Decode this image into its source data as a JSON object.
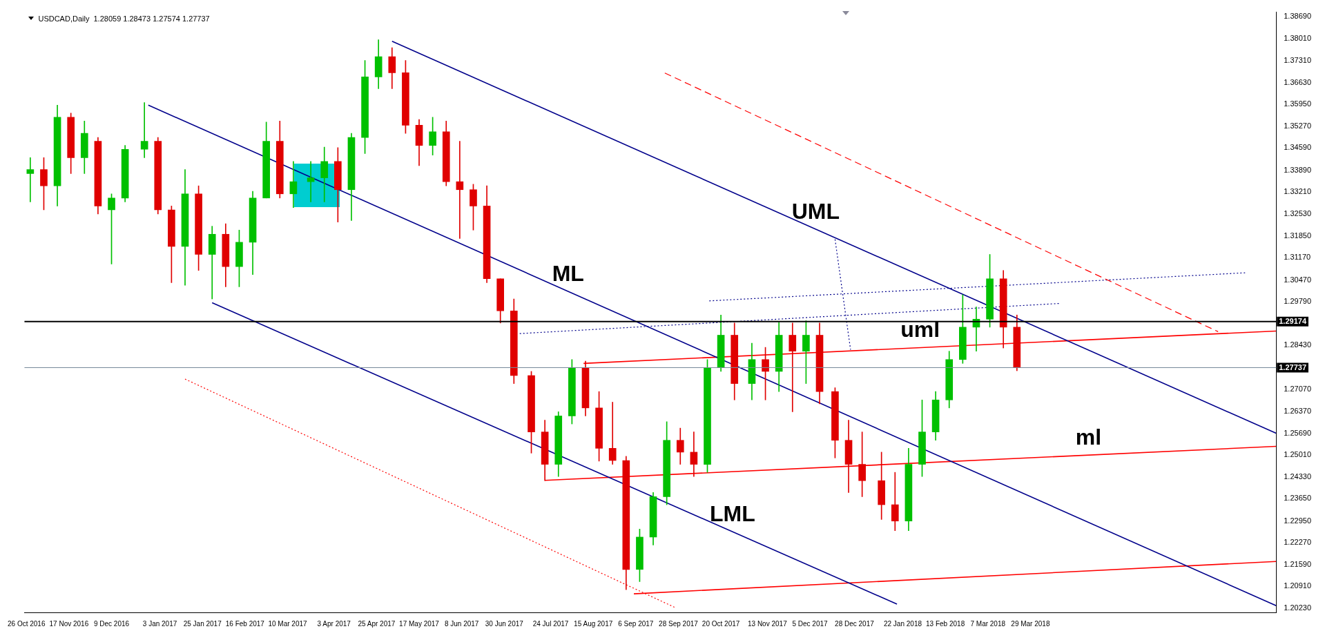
{
  "chart_data": {
    "type": "candlestick",
    "title": "USDCAD,Daily  1.28059 1.28473 1.27574 1.27737",
    "x": [
      "2016-10-28",
      "2016-11-04",
      "2016-11-11",
      "2016-11-18",
      "2016-11-25",
      "2016-12-02",
      "2016-12-09",
      "2016-12-16",
      "2016-12-26",
      "2017-01-02",
      "2017-01-09",
      "2017-01-16",
      "2017-01-23",
      "2017-01-30",
      "2017-02-06",
      "2017-02-13",
      "2017-02-20",
      "2017-02-27",
      "2017-03-06",
      "2017-03-13",
      "2017-03-22",
      "2017-03-29",
      "2017-04-05",
      "2017-04-12",
      "2017-04-19",
      "2017-04-26",
      "2017-05-03",
      "2017-05-10",
      "2017-05-17",
      "2017-05-24",
      "2017-05-31",
      "2017-06-07",
      "2017-06-14",
      "2017-06-21",
      "2017-06-28",
      "2017-07-05",
      "2017-07-14",
      "2017-07-21",
      "2017-07-28",
      "2017-08-04",
      "2017-08-11",
      "2017-08-18",
      "2017-08-25",
      "2017-09-01",
      "2017-09-08",
      "2017-09-15",
      "2017-09-22",
      "2017-09-29",
      "2017-10-06",
      "2017-10-13",
      "2017-10-20",
      "2017-10-27",
      "2017-11-05",
      "2017-11-12",
      "2017-11-19",
      "2017-11-26",
      "2017-12-03",
      "2017-12-10",
      "2017-12-18",
      "2017-12-25",
      "2018-01-01",
      "2018-01-11",
      "2018-01-18",
      "2018-01-25",
      "2018-02-01",
      "2018-02-08",
      "2018-02-15",
      "2018-02-22",
      "2018-03-01",
      "2018-03-08",
      "2018-03-15",
      "2018-03-22"
    ],
    "ohlc": [
      [
        1.3379,
        1.3429,
        1.3291,
        1.3392
      ],
      [
        1.3392,
        1.3429,
        1.3266,
        1.3341
      ],
      [
        1.3341,
        1.3593,
        1.3278,
        1.3555
      ],
      [
        1.3555,
        1.3568,
        1.3379,
        1.3429
      ],
      [
        1.3429,
        1.3543,
        1.3379,
        1.3505
      ],
      [
        1.348,
        1.3492,
        1.3253,
        1.3278
      ],
      [
        1.3266,
        1.3316,
        1.3097,
        1.3303
      ],
      [
        1.3303,
        1.3467,
        1.3291,
        1.3455
      ],
      [
        1.3455,
        1.3601,
        1.3429,
        1.348
      ],
      [
        1.348,
        1.3492,
        1.3253,
        1.3266
      ],
      [
        1.3266,
        1.3278,
        1.3039,
        1.3152
      ],
      [
        1.3152,
        1.3392,
        1.3031,
        1.3316
      ],
      [
        1.3316,
        1.3341,
        1.3077,
        1.3127
      ],
      [
        1.3127,
        1.3215,
        1.2988,
        1.319
      ],
      [
        1.319,
        1.3223,
        1.3026,
        1.3089
      ],
      [
        1.3089,
        1.3203,
        1.3026,
        1.3165
      ],
      [
        1.3165,
        1.3324,
        1.3064,
        1.3303
      ],
      [
        1.3303,
        1.354,
        1.3303,
        1.348
      ],
      [
        1.348,
        1.3543,
        1.3303,
        1.3316
      ],
      [
        1.3316,
        1.3417,
        1.3273,
        1.3354
      ],
      [
        1.3354,
        1.3417,
        1.3291,
        1.3366
      ],
      [
        1.3366,
        1.3462,
        1.3291,
        1.3417
      ],
      [
        1.3417,
        1.346,
        1.3228,
        1.3329
      ],
      [
        1.3329,
        1.3505,
        1.3233,
        1.3492
      ],
      [
        1.3492,
        1.3732,
        1.3442,
        1.3681
      ],
      [
        1.3681,
        1.3797,
        1.3644,
        1.3744
      ],
      [
        1.3744,
        1.3772,
        1.3644,
        1.3694
      ],
      [
        1.3694,
        1.3732,
        1.3505,
        1.353
      ],
      [
        1.353,
        1.3548,
        1.3404,
        1.3467
      ],
      [
        1.3467,
        1.3555,
        1.3437,
        1.351
      ],
      [
        1.351,
        1.3543,
        1.3341,
        1.3354
      ],
      [
        1.3354,
        1.348,
        1.3177,
        1.3329
      ],
      [
        1.3329,
        1.3346,
        1.3203,
        1.3278
      ],
      [
        1.3278,
        1.3341,
        1.3039,
        1.3051
      ],
      [
        1.3051,
        1.3051,
        1.2913,
        1.2951
      ],
      [
        1.2951,
        1.2988,
        1.2724,
        1.2749
      ],
      [
        1.2749,
        1.2762,
        1.2507,
        1.2573
      ],
      [
        1.2573,
        1.261,
        1.2421,
        1.2472
      ],
      [
        1.2472,
        1.2636,
        1.2434,
        1.2623
      ],
      [
        1.2623,
        1.2799,
        1.2598,
        1.2774
      ],
      [
        1.2774,
        1.2794,
        1.2623,
        1.2648
      ],
      [
        1.2648,
        1.2699,
        1.2482,
        1.2522
      ],
      [
        1.2522,
        1.2666,
        1.2472,
        1.2484
      ],
      [
        1.2484,
        1.2497,
        1.2081,
        1.2144
      ],
      [
        1.2144,
        1.227,
        1.2106,
        1.2245
      ],
      [
        1.2245,
        1.2384,
        1.222,
        1.2371
      ],
      [
        1.2371,
        1.2605,
        1.2346,
        1.2547
      ],
      [
        1.2547,
        1.2585,
        1.2472,
        1.251
      ],
      [
        1.251,
        1.2573,
        1.2434,
        1.2472
      ],
      [
        1.2472,
        1.2799,
        1.2447,
        1.2774
      ],
      [
        1.2774,
        1.2938,
        1.2762,
        1.2875
      ],
      [
        1.2875,
        1.2913,
        1.2673,
        1.2724
      ],
      [
        1.2724,
        1.285,
        1.2673,
        1.2799
      ],
      [
        1.2799,
        1.2837,
        1.2673,
        1.2762
      ],
      [
        1.2762,
        1.2915,
        1.2699,
        1.2875
      ],
      [
        1.2875,
        1.2913,
        1.2636,
        1.2825
      ],
      [
        1.2825,
        1.292,
        1.2724,
        1.2875
      ],
      [
        1.2875,
        1.2913,
        1.2661,
        1.2699
      ],
      [
        1.2699,
        1.2711,
        1.2492,
        1.2547
      ],
      [
        1.2547,
        1.261,
        1.2384,
        1.2472
      ],
      [
        1.2472,
        1.2573,
        1.2371,
        1.2421
      ],
      [
        1.2421,
        1.251,
        1.23,
        1.2346
      ],
      [
        1.2346,
        1.2447,
        1.2265,
        1.2295
      ],
      [
        1.2295,
        1.2522,
        1.2265,
        1.2472
      ],
      [
        1.2472,
        1.2673,
        1.2434,
        1.2573
      ],
      [
        1.2573,
        1.2699,
        1.2547,
        1.2673
      ],
      [
        1.2673,
        1.2825,
        1.2648,
        1.2799
      ],
      [
        1.2799,
        1.3001,
        1.2787,
        1.29
      ],
      [
        1.29,
        1.2963,
        1.2825,
        1.2925
      ],
      [
        1.2925,
        1.3127,
        1.29,
        1.3051
      ],
      [
        1.3051,
        1.3077,
        1.2835,
        1.29
      ],
      [
        1.29,
        1.2938,
        1.2764,
        1.2774
      ]
    ],
    "colors": [
      "#00c000",
      "#e00000",
      "#00c000",
      "#e00000",
      "#00c000",
      "#e00000",
      "#00c000",
      "#00c000",
      "#00c000",
      "#e00000",
      "#e00000",
      "#00c000",
      "#e00000",
      "#00c000",
      "#e00000",
      "#00c000",
      "#00c000",
      "#00c000",
      "#e00000",
      "#00c000",
      "#00c000",
      "#00c000",
      "#e00000",
      "#00c000",
      "#00c000",
      "#00c000",
      "#e00000",
      "#e00000",
      "#e00000",
      "#00c000",
      "#e00000",
      "#e00000",
      "#e00000",
      "#e00000",
      "#e00000",
      "#e00000",
      "#e00000",
      "#e00000",
      "#00c000",
      "#00c000",
      "#e00000",
      "#e00000",
      "#e00000",
      "#e00000",
      "#00c000",
      "#00c000",
      "#00c000",
      "#e00000",
      "#e00000",
      "#00c000",
      "#00c000",
      "#e00000",
      "#00c000",
      "#e00000",
      "#00c000",
      "#e00000",
      "#00c000",
      "#e00000",
      "#e00000",
      "#e00000",
      "#e00000",
      "#e00000",
      "#e00000",
      "#00c000",
      "#00c000",
      "#00c000",
      "#00c000",
      "#00c000",
      "#00c000",
      "#00c000",
      "#e00000",
      "#e00000"
    ],
    "series": [
      {
        "type": "line",
        "color": "#00008b",
        "line_style": "solid",
        "x": [
          "2017-05-03",
          "2018-08-03"
        ],
        "values": [
          1.3792,
          1.2569
        ]
      },
      {
        "type": "line",
        "color": "#00008b",
        "line_style": "solid",
        "x": [
          "2016-12-28",
          "2018-08-03"
        ],
        "values": [
          1.3593,
          1.2031
        ]
      },
      {
        "type": "line",
        "color": "#00008b",
        "line_style": "solid",
        "x": [
          "2017-01-30",
          "2018-01-19"
        ],
        "values": [
          1.2976,
          1.2036
        ]
      },
      {
        "type": "line",
        "color": "#ff0000",
        "line_style": "solid",
        "x": [
          "2017-08-10",
          "2018-08-03"
        ],
        "values": [
          1.2787,
          1.2888
        ]
      },
      {
        "type": "line",
        "color": "#ff0000",
        "line_style": "solid",
        "x": [
          "2017-07-21",
          "2018-08-03"
        ],
        "values": [
          1.2422,
          1.2528
        ]
      },
      {
        "type": "line",
        "color": "#ff0000",
        "line_style": "solid",
        "x": [
          "2017-09-05",
          "2018-08-03"
        ],
        "values": [
          1.2068,
          1.2169
        ]
      },
      {
        "type": "line",
        "color": "#ff0000",
        "line_style": "dashed",
        "x": [
          "2017-09-21",
          "2018-07-04"
        ],
        "values": [
          1.3693,
          1.2886
        ]
      },
      {
        "type": "line",
        "color": "#ff0000",
        "line_style": "dotted",
        "x": [
          "2017-01-16",
          "2017-09-26"
        ],
        "values": [
          1.2738,
          1.2026
        ]
      },
      {
        "type": "line",
        "color": "#00008b",
        "line_style": "dotted",
        "x": [
          "2017-07-08",
          "2018-04-13"
        ],
        "values": [
          1.288,
          1.2974
        ]
      },
      {
        "type": "line",
        "color": "#00008b",
        "line_style": "dotted",
        "x": [
          "2017-10-14",
          "2018-07-19"
        ],
        "values": [
          1.2982,
          1.307
        ]
      },
      {
        "type": "line",
        "color": "#00008b",
        "line_style": "dotted",
        "x": [
          "2017-12-18",
          "2017-12-26"
        ],
        "values": [
          1.3174,
          1.283
        ]
      }
    ],
    "ref_lines": [
      {
        "axis": "y",
        "value": 1.29174,
        "label": "1.29174",
        "color": "#000000"
      },
      {
        "axis": "y",
        "value": 1.27737,
        "label": "1.27737",
        "color": "#778899"
      }
    ],
    "annotations": [
      {
        "text": "UML",
        "x": "2017-12-08",
        "y": 1.3206
      },
      {
        "text": "ML",
        "x": "2017-08-02",
        "y": 1.3012
      },
      {
        "text": "LML",
        "x": "2017-10-26",
        "y": 1.2262
      },
      {
        "text": "uml",
        "x": "2018-01-31",
        "y": 1.2836
      },
      {
        "text": "ml",
        "x": "2018-04-28",
        "y": 1.2501
      }
    ],
    "xlim": [
      "2016-10-25",
      "2018-08-03"
    ],
    "xticks": [
      {
        "value": "2016-10-26",
        "label": "26 Oct 2016"
      },
      {
        "value": "2016-11-17",
        "label": "17 Nov 2016"
      },
      {
        "value": "2016-12-09",
        "label": "9 Dec 2016"
      },
      {
        "value": "2017-01-03",
        "label": "3 Jan 2017"
      },
      {
        "value": "2017-01-25",
        "label": "25 Jan 2017"
      },
      {
        "value": "2017-02-16",
        "label": "16 Feb 2017"
      },
      {
        "value": "2017-03-10",
        "label": "10 Mar 2017"
      },
      {
        "value": "2017-04-03",
        "label": "3 Apr 2017"
      },
      {
        "value": "2017-04-25",
        "label": "25 Apr 2017"
      },
      {
        "value": "2017-05-17",
        "label": "17 May 2017"
      },
      {
        "value": "2017-06-08",
        "label": "8 Jun 2017"
      },
      {
        "value": "2017-06-30",
        "label": "30 Jun 2017"
      },
      {
        "value": "2017-07-24",
        "label": "24 Jul 2017"
      },
      {
        "value": "2017-08-15",
        "label": "15 Aug 2017"
      },
      {
        "value": "2017-09-06",
        "label": "6 Sep 2017"
      },
      {
        "value": "2017-09-28",
        "label": "28 Sep 2017"
      },
      {
        "value": "2017-10-20",
        "label": "20 Oct 2017"
      },
      {
        "value": "2017-11-13",
        "label": "13 Nov 2017"
      },
      {
        "value": "2017-12-05",
        "label": "5 Dec 2017"
      },
      {
        "value": "2017-12-28",
        "label": "28 Dec 2017"
      },
      {
        "value": "2018-01-22",
        "label": "22 Jan 2018"
      },
      {
        "value": "2018-02-13",
        "label": "13 Feb 2018"
      },
      {
        "value": "2018-03-07",
        "label": "7 Mar 2018"
      },
      {
        "value": "2018-03-29",
        "label": "29 Mar 2018"
      }
    ],
    "ylim": [
      1.201,
      1.3883
    ],
    "yticks": [
      {
        "value": 1.3869,
        "label": "1.38690"
      },
      {
        "value": 1.3801,
        "label": "1.38010"
      },
      {
        "value": 1.3731,
        "label": "1.37310"
      },
      {
        "value": 1.3663,
        "label": "1.36630"
      },
      {
        "value": 1.3595,
        "label": "1.35950"
      },
      {
        "value": 1.3527,
        "label": "1.35270"
      },
      {
        "value": 1.3459,
        "label": "1.34590"
      },
      {
        "value": 1.3389,
        "label": "1.33890"
      },
      {
        "value": 1.3321,
        "label": "1.33210"
      },
      {
        "value": 1.3253,
        "label": "1.32530"
      },
      {
        "value": 1.3185,
        "label": "1.31850"
      },
      {
        "value": 1.3117,
        "label": "1.31170"
      },
      {
        "value": 1.3047,
        "label": "1.30470"
      },
      {
        "value": 1.2979,
        "label": "1.29790"
      },
      {
        "value": 1.2843,
        "label": "1.28430"
      },
      {
        "value": 1.2707,
        "label": "1.27070"
      },
      {
        "value": 1.2637,
        "label": "1.26370"
      },
      {
        "value": 1.2569,
        "label": "1.25690"
      },
      {
        "value": 1.2501,
        "label": "1.25010"
      },
      {
        "value": 1.2433,
        "label": "1.24330"
      },
      {
        "value": 1.2365,
        "label": "1.23650"
      },
      {
        "value": 1.2295,
        "label": "1.22950"
      },
      {
        "value": 1.2227,
        "label": "1.22270"
      },
      {
        "value": 1.2159,
        "label": "1.21590"
      },
      {
        "value": 1.2091,
        "label": "1.20910"
      },
      {
        "value": 1.2023,
        "label": "1.20230"
      }
    ]
  }
}
